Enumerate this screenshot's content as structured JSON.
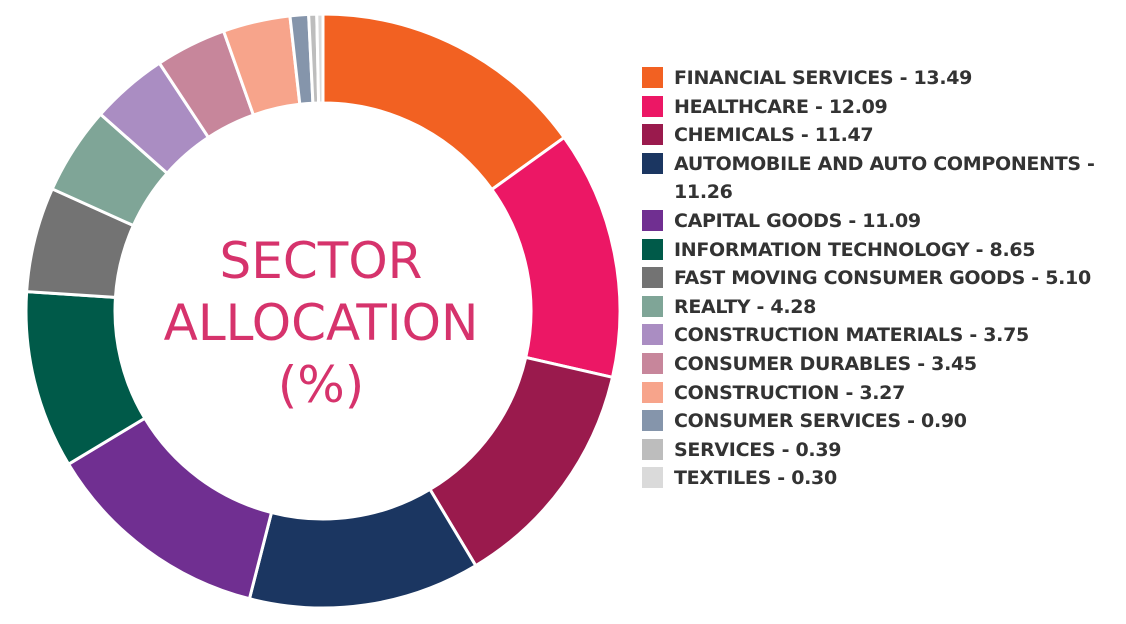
{
  "chart_data": {
    "type": "pie",
    "donut": true,
    "title": "SECTOR ALLOCATION (%)",
    "title_lines": [
      "SECTOR",
      "ALLOCATION",
      "(%)"
    ],
    "legend_position": "right",
    "slices": [
      {
        "label": "FINANCIAL SERVICES - 13.49",
        "name": "FINANCIAL SERVICES",
        "value": 13.49,
        "color": "#F26122"
      },
      {
        "label": "HEALTHCARE - 12.09",
        "name": "HEALTHCARE",
        "value": 12.09,
        "color": "#EC1765"
      },
      {
        "label": "CHEMICALS - 11.47",
        "name": "CHEMICALS",
        "value": 11.47,
        "color": "#9A1A4D"
      },
      {
        "label": "AUTOMOBILE AND AUTO COMPONENTS - 11.26",
        "name": "AUTOMOBILE AND AUTO COMPONENTS",
        "value": 11.26,
        "color": "#1B3661"
      },
      {
        "label": "CAPITAL GOODS - 11.09",
        "name": "CAPITAL GOODS",
        "value": 11.09,
        "color": "#702F91"
      },
      {
        "label": "INFORMATION TECHNOLOGY - 8.65",
        "name": "INFORMATION TECHNOLOGY",
        "value": 8.65,
        "color": "#005A49"
      },
      {
        "label": "FAST MOVING CONSUMER GOODS - 5.10",
        "name": "FAST MOVING CONSUMER GOODS",
        "value": 5.1,
        "color": "#737373"
      },
      {
        "label": "REALTY - 4.28",
        "name": "REALTY",
        "value": 4.28,
        "color": "#7FA597"
      },
      {
        "label": "CONSTRUCTION MATERIALS - 3.75",
        "name": "CONSTRUCTION MATERIALS",
        "value": 3.75,
        "color": "#AA8DC2"
      },
      {
        "label": "CONSUMER DURABLES - 3.45",
        "name": "CONSUMER DURABLES",
        "value": 3.45,
        "color": "#C7869B"
      },
      {
        "label": "CONSTRUCTION - 3.27",
        "name": "CONSTRUCTION",
        "value": 3.27,
        "color": "#F7A48B"
      },
      {
        "label": "CONSUMER SERVICES - 0.90",
        "name": "CONSUMER SERVICES",
        "value": 0.9,
        "color": "#8595AB"
      },
      {
        "label": "SERVICES - 0.39",
        "name": "SERVICES",
        "value": 0.39,
        "color": "#BDBDBD"
      },
      {
        "label": "TEXTILES - 0.30",
        "name": "TEXTILES",
        "value": 0.3,
        "color": "#DADADA"
      }
    ]
  }
}
